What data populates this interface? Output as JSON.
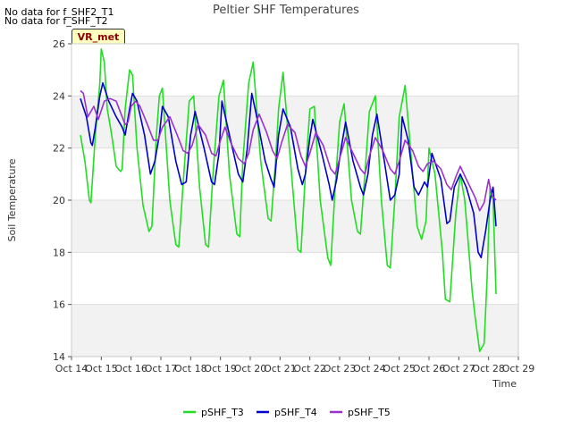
{
  "notices": [
    "No data for f_SHF2_T1",
    "No data for f_SHF_T2"
  ],
  "badge_label": "VR_met",
  "chart_data": {
    "type": "line",
    "title": "Peltier SHF Temperatures",
    "xlabel": "Time",
    "ylabel": "Soil Temperature",
    "ylim": [
      14,
      26
    ],
    "yticks": [
      14,
      16,
      18,
      20,
      22,
      24,
      26
    ],
    "xlim": [
      14,
      29
    ],
    "xticks": [
      14,
      15,
      16,
      17,
      18,
      19,
      20,
      21,
      22,
      23,
      24,
      25,
      26,
      27,
      28,
      29
    ],
    "xtick_labels": [
      "Oct 14",
      "Oct 15",
      "Oct 16",
      "Oct 17",
      "Oct 18",
      "Oct 19",
      "Oct 20",
      "Oct 21",
      "Oct 22",
      "Oct 23",
      "Oct 24",
      "Oct 25",
      "Oct 26",
      "Oct 27",
      "Oct 28",
      "Oct 29"
    ],
    "grid": "horizontal-bands",
    "legend": "bottom",
    "series": [
      {
        "name": "pSHF_T3",
        "color": "#22dd22",
        "x": [
          14.3,
          14.45,
          14.6,
          14.65,
          14.8,
          14.95,
          15.0,
          15.1,
          15.2,
          15.35,
          15.5,
          15.65,
          15.7,
          15.8,
          15.95,
          16.05,
          16.2,
          16.4,
          16.6,
          16.7,
          16.85,
          16.95,
          17.05,
          17.3,
          17.5,
          17.6,
          17.8,
          17.95,
          18.1,
          18.3,
          18.5,
          18.6,
          18.75,
          18.95,
          19.1,
          19.3,
          19.55,
          19.65,
          19.75,
          19.95,
          20.1,
          20.35,
          20.6,
          20.7,
          20.85,
          20.95,
          21.1,
          21.35,
          21.6,
          21.7,
          21.85,
          22.0,
          22.15,
          22.35,
          22.6,
          22.7,
          22.85,
          23.0,
          23.15,
          23.4,
          23.6,
          23.7,
          23.85,
          24.0,
          24.2,
          24.4,
          24.6,
          24.7,
          24.85,
          25.0,
          25.2,
          25.45,
          25.6,
          25.75,
          25.9,
          26.0,
          26.2,
          26.45,
          26.55,
          26.7,
          26.9,
          27.05,
          27.2,
          27.45,
          27.55,
          27.7,
          27.85,
          27.95,
          28.05,
          28.15,
          28.25
        ],
        "values": [
          22.5,
          21.5,
          20.0,
          19.9,
          22.5,
          24.5,
          25.8,
          25.3,
          23.5,
          22.5,
          21.3,
          21.1,
          21.2,
          23.5,
          25.0,
          24.8,
          22.0,
          19.8,
          18.8,
          19.0,
          22.5,
          24.0,
          24.3,
          20.0,
          18.3,
          18.2,
          21.5,
          23.8,
          24.0,
          20.5,
          18.3,
          18.2,
          21.0,
          24.0,
          24.6,
          21.0,
          18.7,
          18.6,
          21.5,
          24.5,
          25.3,
          21.5,
          19.3,
          19.2,
          21.5,
          23.5,
          24.9,
          21.5,
          18.1,
          18.0,
          21.0,
          23.5,
          23.6,
          20.0,
          17.8,
          17.5,
          20.5,
          23.0,
          23.7,
          20.0,
          18.8,
          18.7,
          21.0,
          23.4,
          24.0,
          20.0,
          17.5,
          17.4,
          20.0,
          23.2,
          24.4,
          21.0,
          19.0,
          18.5,
          19.2,
          22.0,
          21.0,
          18.0,
          16.2,
          16.1,
          19.5,
          21.0,
          20.0,
          16.5,
          15.5,
          14.2,
          14.5,
          17.0,
          20.5,
          20.0,
          16.4
        ]
      },
      {
        "name": "pSHF_T4",
        "color": "#0000cc",
        "x": [
          14.3,
          14.5,
          14.65,
          14.7,
          14.8,
          14.95,
          15.05,
          15.25,
          15.5,
          15.7,
          15.8,
          15.95,
          16.05,
          16.2,
          16.45,
          16.65,
          16.8,
          16.95,
          17.05,
          17.25,
          17.5,
          17.7,
          17.85,
          18.0,
          18.15,
          18.45,
          18.7,
          18.8,
          18.95,
          19.05,
          19.3,
          19.6,
          19.75,
          19.9,
          20.05,
          20.2,
          20.5,
          20.7,
          20.8,
          20.95,
          21.1,
          21.35,
          21.6,
          21.75,
          21.85,
          22.0,
          22.1,
          22.4,
          22.65,
          22.75,
          22.9,
          23.05,
          23.2,
          23.45,
          23.7,
          23.8,
          23.95,
          24.1,
          24.25,
          24.5,
          24.7,
          24.85,
          25.0,
          25.1,
          25.3,
          25.5,
          25.65,
          25.85,
          25.95,
          26.1,
          26.4,
          26.6,
          26.7,
          26.85,
          27.05,
          27.25,
          27.5,
          27.65,
          27.75,
          27.9,
          28.05,
          28.15,
          28.25
        ],
        "values": [
          23.9,
          23.2,
          22.2,
          22.1,
          22.8,
          24.0,
          24.5,
          23.8,
          23.2,
          22.8,
          22.5,
          23.5,
          24.1,
          23.8,
          22.5,
          21.0,
          21.5,
          22.5,
          23.6,
          23.2,
          21.5,
          20.6,
          20.7,
          22.5,
          23.4,
          22.0,
          20.7,
          20.6,
          21.8,
          23.8,
          22.5,
          21.0,
          20.7,
          22.0,
          24.1,
          23.3,
          21.5,
          20.8,
          20.5,
          22.5,
          23.5,
          22.8,
          21.2,
          20.6,
          21.0,
          22.4,
          23.1,
          21.8,
          20.6,
          20.0,
          20.8,
          22.0,
          23.0,
          21.5,
          20.5,
          20.2,
          21.0,
          22.5,
          23.3,
          21.5,
          20.0,
          20.2,
          21.0,
          23.2,
          22.3,
          20.5,
          20.2,
          20.7,
          20.5,
          21.8,
          20.8,
          19.1,
          19.2,
          20.5,
          21.0,
          20.5,
          19.5,
          18.0,
          17.8,
          18.8,
          20.0,
          20.5,
          19.0
        ]
      },
      {
        "name": "pSHF_T5",
        "color": "#9932cc",
        "x": [
          14.3,
          14.4,
          14.55,
          14.75,
          14.9,
          15.1,
          15.3,
          15.5,
          15.7,
          15.8,
          15.9,
          16.0,
          16.15,
          16.3,
          16.55,
          16.75,
          16.9,
          17.05,
          17.3,
          17.55,
          17.75,
          17.9,
          18.05,
          18.25,
          18.5,
          18.7,
          18.85,
          19.0,
          19.15,
          19.35,
          19.6,
          19.8,
          19.95,
          20.1,
          20.3,
          20.55,
          20.75,
          20.9,
          21.05,
          21.25,
          21.5,
          21.7,
          21.85,
          22.0,
          22.2,
          22.45,
          22.7,
          22.85,
          23.0,
          23.2,
          23.45,
          23.7,
          23.85,
          24.0,
          24.2,
          24.45,
          24.7,
          24.85,
          25.0,
          25.2,
          25.45,
          25.65,
          25.8,
          25.95,
          26.15,
          26.4,
          26.6,
          26.75,
          26.9,
          27.05,
          27.3,
          27.55,
          27.7,
          27.85,
          28.0,
          28.1,
          28.25
        ],
        "values": [
          24.2,
          24.1,
          23.2,
          23.6,
          23.1,
          23.8,
          23.9,
          23.8,
          23.2,
          22.9,
          23.0,
          23.6,
          23.8,
          23.6,
          22.9,
          22.3,
          22.3,
          22.8,
          23.2,
          22.5,
          21.9,
          21.8,
          22.1,
          22.9,
          22.5,
          21.8,
          21.7,
          22.3,
          22.8,
          22.2,
          21.6,
          21.4,
          21.8,
          22.7,
          23.3,
          22.6,
          21.9,
          21.6,
          22.2,
          22.9,
          22.6,
          21.7,
          21.3,
          21.8,
          22.6,
          22.1,
          21.2,
          21.0,
          21.6,
          22.4,
          21.8,
          21.2,
          21.0,
          21.7,
          22.4,
          21.9,
          21.2,
          21.0,
          21.5,
          22.3,
          21.9,
          21.3,
          21.1,
          21.4,
          21.5,
          21.2,
          20.6,
          20.4,
          20.9,
          21.3,
          20.7,
          20.1,
          19.6,
          19.9,
          20.8,
          20.2,
          20.0
        ]
      }
    ]
  }
}
